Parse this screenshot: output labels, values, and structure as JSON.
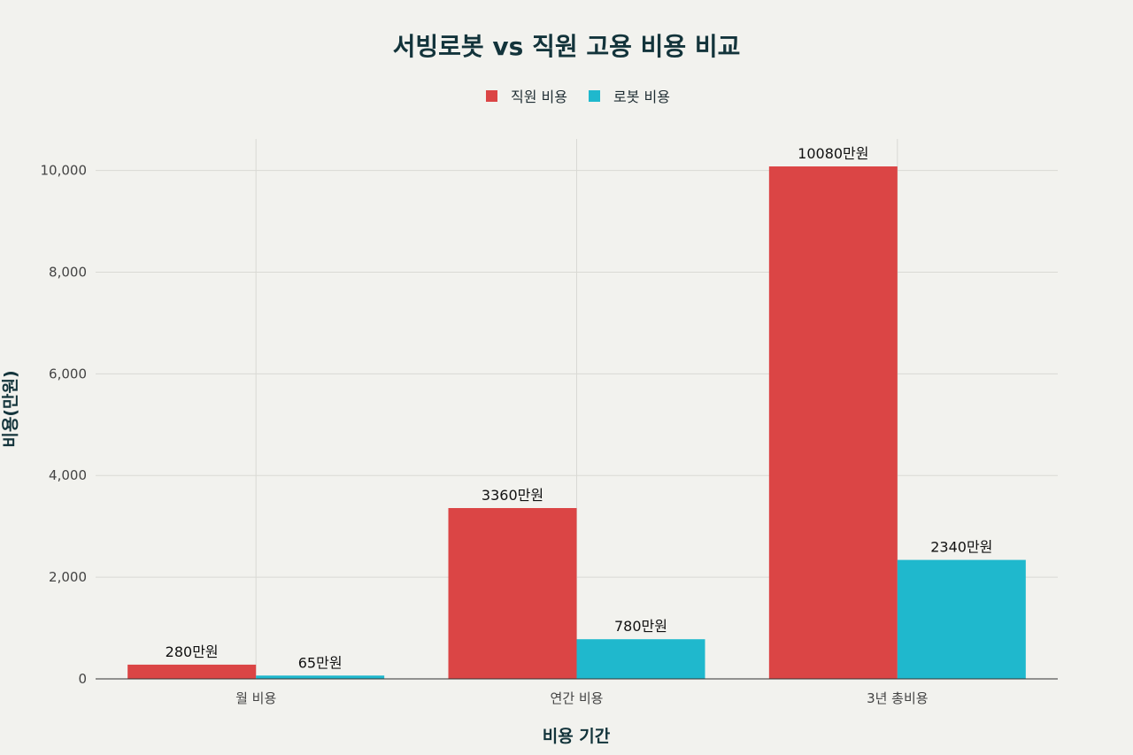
{
  "chart_data": {
    "type": "bar",
    "title": "서빙로봇 vs 직원 고용 비용 비교",
    "xlabel": "비용 기간",
    "ylabel": "비용(만원)",
    "categories": [
      "월 비용",
      "연간 비용",
      "3년 총비용"
    ],
    "series": [
      {
        "name": "직원 비용",
        "color": "#db4545",
        "values": [
          280,
          3360,
          10080
        ],
        "labels": [
          "280만원",
          "3360만원",
          "10080만원"
        ]
      },
      {
        "name": "로봇 비용",
        "color": "#1fb8cd",
        "values": [
          65,
          780,
          2340
        ],
        "labels": [
          "65만원",
          "780만원",
          "2340만원"
        ]
      }
    ],
    "ylim": [
      0,
      10620
    ],
    "yticks": [
      0,
      2000,
      4000,
      6000,
      8000,
      10000
    ],
    "ytick_labels": [
      "0",
      "2,000",
      "4,000",
      "6,000",
      "8,000",
      "10,000"
    ],
    "grid": true,
    "legend_position": "top-center"
  }
}
